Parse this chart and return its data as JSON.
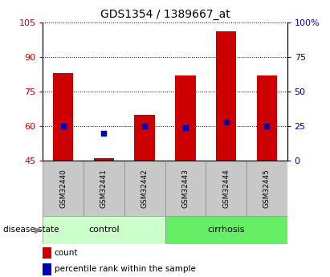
{
  "title": "GDS1354 / 1389667_at",
  "samples": [
    "GSM32440",
    "GSM32441",
    "GSM32442",
    "GSM32443",
    "GSM32444",
    "GSM32445"
  ],
  "counts": [
    83,
    46,
    65,
    82,
    101,
    82
  ],
  "percentile_ranks": [
    25,
    20,
    25,
    24,
    28,
    25
  ],
  "groups": [
    "control",
    "control",
    "control",
    "cirrhosis",
    "cirrhosis",
    "cirrhosis"
  ],
  "ylim_left": [
    45,
    105
  ],
  "ylim_right": [
    0,
    100
  ],
  "yticks_left": [
    45,
    60,
    75,
    90,
    105
  ],
  "yticks_right": [
    0,
    25,
    50,
    75,
    100
  ],
  "bar_color": "#cc0000",
  "dot_color": "#0000bb",
  "bar_width": 0.5,
  "control_color": "#ccffcc",
  "cirrhosis_color": "#66ee66",
  "sample_box_color": "#c8c8c8",
  "tick_color_left": "#cc0000",
  "tick_color_right": "#0000bb",
  "plot_bg_color": "#ffffff"
}
